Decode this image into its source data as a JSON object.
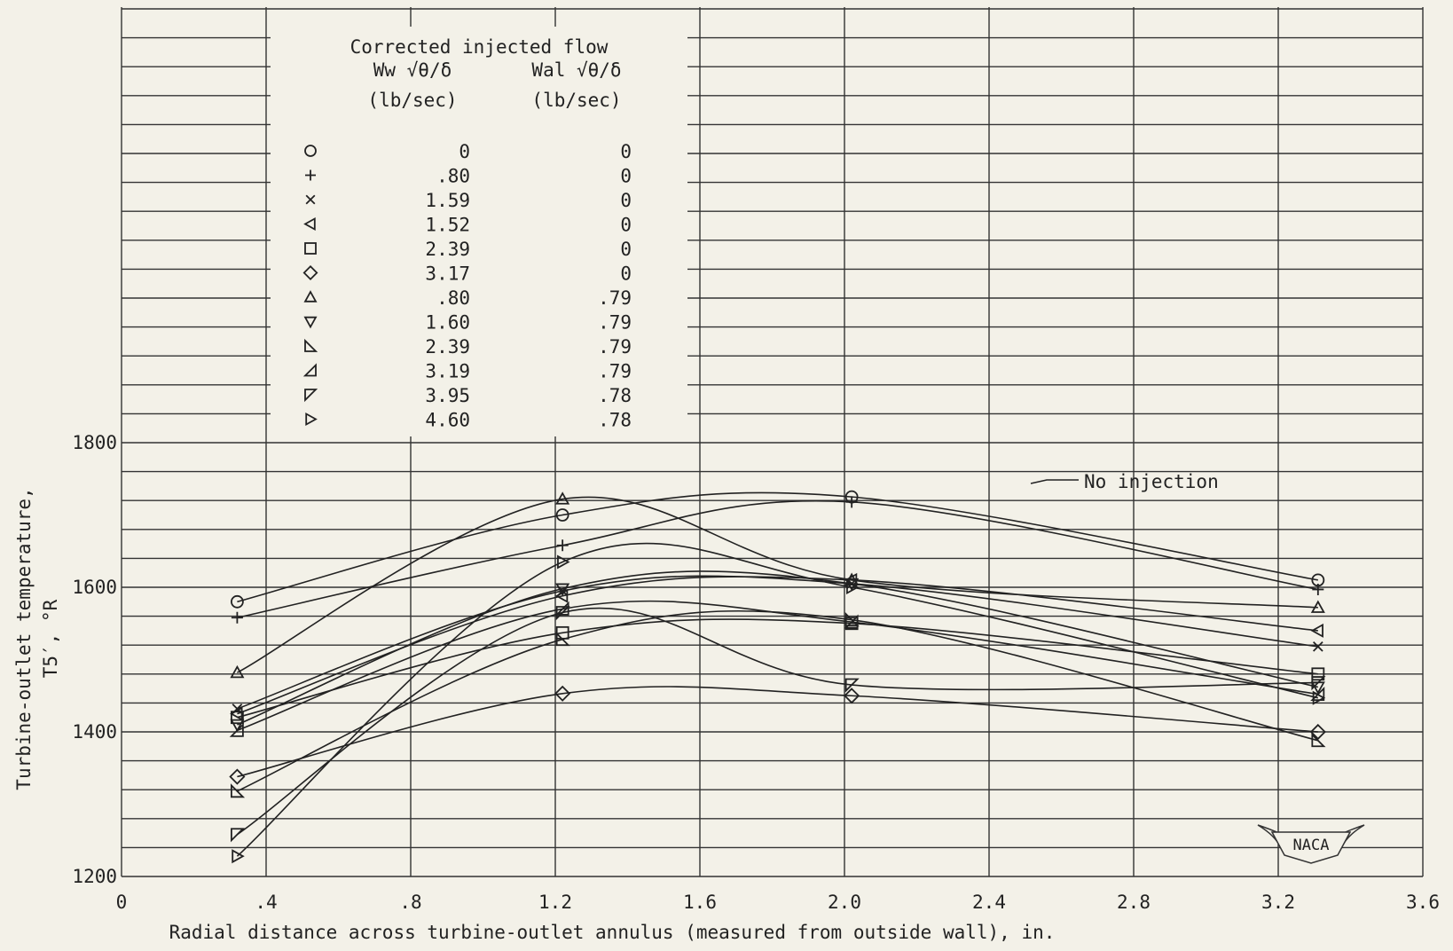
{
  "chart_data": {
    "type": "line",
    "xlabel": "Radial distance across turbine-outlet annulus (measured from outside wall), in.",
    "ylabel": "Turbine-outlet temperature,",
    "ylabel_symbol": "T5′, °R",
    "xlim": [
      0,
      3.6
    ],
    "ylim": [
      1200,
      1800
    ],
    "x_ticks": [
      "0",
      ".4",
      ".8",
      "1.2",
      "1.6",
      "2.0",
      "2.4",
      "2.8",
      "3.2",
      "3.6"
    ],
    "y_ticks": [
      "1200",
      "1400",
      "1600",
      "1800"
    ],
    "x_tick_values": [
      0,
      0.4,
      0.8,
      1.2,
      1.6,
      2.0,
      2.4,
      2.8,
      3.2,
      3.6
    ],
    "y_tick_values": [
      1200,
      1400,
      1600,
      1800
    ],
    "annotation": "No injection",
    "legend": {
      "title": "Corrected injected flow",
      "col1_header": "Ww √θ/δ",
      "col2_header": "Wal √θ/δ",
      "col_units": "(lb/sec)",
      "rows": [
        {
          "marker": "circle",
          "ww": "0",
          "wal": "0"
        },
        {
          "marker": "plus",
          "ww": ".80",
          "wal": "0"
        },
        {
          "marker": "cross",
          "ww": "1.59",
          "wal": "0"
        },
        {
          "marker": "tri-left",
          "ww": "1.52",
          "wal": "0"
        },
        {
          "marker": "square",
          "ww": "2.39",
          "wal": "0"
        },
        {
          "marker": "diamond",
          "ww": "3.17",
          "wal": "0"
        },
        {
          "marker": "tri-up",
          "ww": ".80",
          "wal": ".79"
        },
        {
          "marker": "tri-down",
          "ww": "1.60",
          "wal": ".79"
        },
        {
          "marker": "flag-br",
          "ww": "2.39",
          "wal": ".79"
        },
        {
          "marker": "flag-tr",
          "ww": "3.19",
          "wal": ".79"
        },
        {
          "marker": "flag-bl",
          "ww": "3.95",
          "wal": ".78"
        },
        {
          "marker": "tri-right",
          "ww": "4.60",
          "wal": ".78"
        }
      ]
    },
    "series": [
      {
        "marker": "circle",
        "x": [
          0.32,
          1.22,
          2.02,
          3.31
        ],
        "y": [
          1580,
          1700,
          1725,
          1610
        ]
      },
      {
        "marker": "plus",
        "x": [
          0.32,
          1.22,
          2.02,
          3.31
        ],
        "y": [
          1558,
          1658,
          1718,
          1597
        ]
      },
      {
        "marker": "cross",
        "x": [
          0.32,
          1.22,
          2.02,
          3.31
        ],
        "y": [
          1432,
          1595,
          1605,
          1518
        ]
      },
      {
        "marker": "tri-left",
        "x": [
          0.32,
          1.22,
          2.02,
          3.31
        ],
        "y": [
          1425,
          1588,
          1610,
          1540
        ]
      },
      {
        "marker": "square",
        "x": [
          0.32,
          1.22,
          2.02,
          3.31
        ],
        "y": [
          1420,
          1537,
          1550,
          1480
        ]
      },
      {
        "marker": "diamond",
        "x": [
          0.32,
          1.22,
          2.02,
          3.31
        ],
        "y": [
          1338,
          1453,
          1450,
          1400
        ]
      },
      {
        "marker": "tri-up",
        "x": [
          0.32,
          1.22,
          2.02,
          3.31
        ],
        "y": [
          1482,
          1722,
          1610,
          1572
        ]
      },
      {
        "marker": "tri-down",
        "x": [
          0.32,
          1.22,
          2.02,
          3.31
        ],
        "y": [
          1410,
          1598,
          1605,
          1462
        ]
      },
      {
        "marker": "flag-br",
        "x": [
          0.32,
          1.22,
          2.02,
          3.31
        ],
        "y": [
          1318,
          1528,
          1555,
          1388
        ]
      },
      {
        "marker": "flag-tr",
        "x": [
          0.32,
          1.22,
          2.02,
          3.31
        ],
        "y": [
          1402,
          1570,
          1552,
          1452
        ]
      },
      {
        "marker": "flag-bl",
        "x": [
          0.32,
          1.22,
          2.02,
          3.31
        ],
        "y": [
          1258,
          1565,
          1465,
          1468
        ]
      },
      {
        "marker": "tri-right",
        "x": [
          0.32,
          1.22,
          2.02,
          3.31
        ],
        "y": [
          1228,
          1635,
          1600,
          1447
        ]
      }
    ]
  }
}
